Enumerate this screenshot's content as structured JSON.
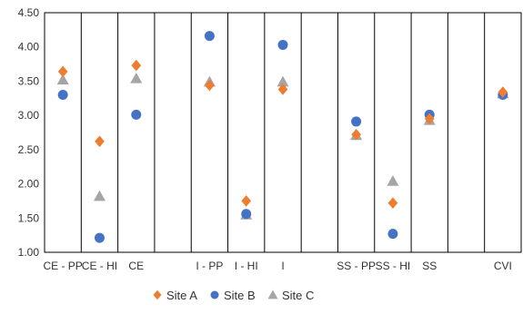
{
  "chart_data": {
    "type": "scatter",
    "categories": [
      "CE - PP",
      "CE - HI",
      "CE",
      "",
      "I - PP",
      "I - HI",
      "I",
      "",
      "SS - PP",
      "SS - HI",
      "SS",
      "",
      "CVI"
    ],
    "series": [
      {
        "name": "Site A",
        "marker": "diamond",
        "color": "#ED7D31",
        "values": [
          3.64,
          2.62,
          3.73,
          null,
          3.44,
          1.75,
          3.38,
          null,
          2.72,
          1.72,
          2.95,
          null,
          3.34
        ]
      },
      {
        "name": "Site B",
        "marker": "circle",
        "color": "#4472C4",
        "values": [
          3.3,
          1.21,
          3.01,
          null,
          4.16,
          1.56,
          4.03,
          null,
          2.91,
          1.27,
          3.01,
          null,
          3.3
        ]
      },
      {
        "name": "Site C",
        "marker": "triangle",
        "color": "#A5A5A5",
        "values": [
          3.52,
          1.82,
          3.54,
          null,
          3.49,
          1.55,
          3.49,
          null,
          2.71,
          2.04,
          2.93,
          null,
          3.32
        ]
      }
    ],
    "ylim": [
      1.0,
      4.5
    ],
    "yticks": [
      "1.00",
      "1.50",
      "2.00",
      "2.50",
      "3.00",
      "3.50",
      "4.00",
      "4.50"
    ],
    "grid": "vertical separators between categories",
    "legend_position": "bottom"
  }
}
